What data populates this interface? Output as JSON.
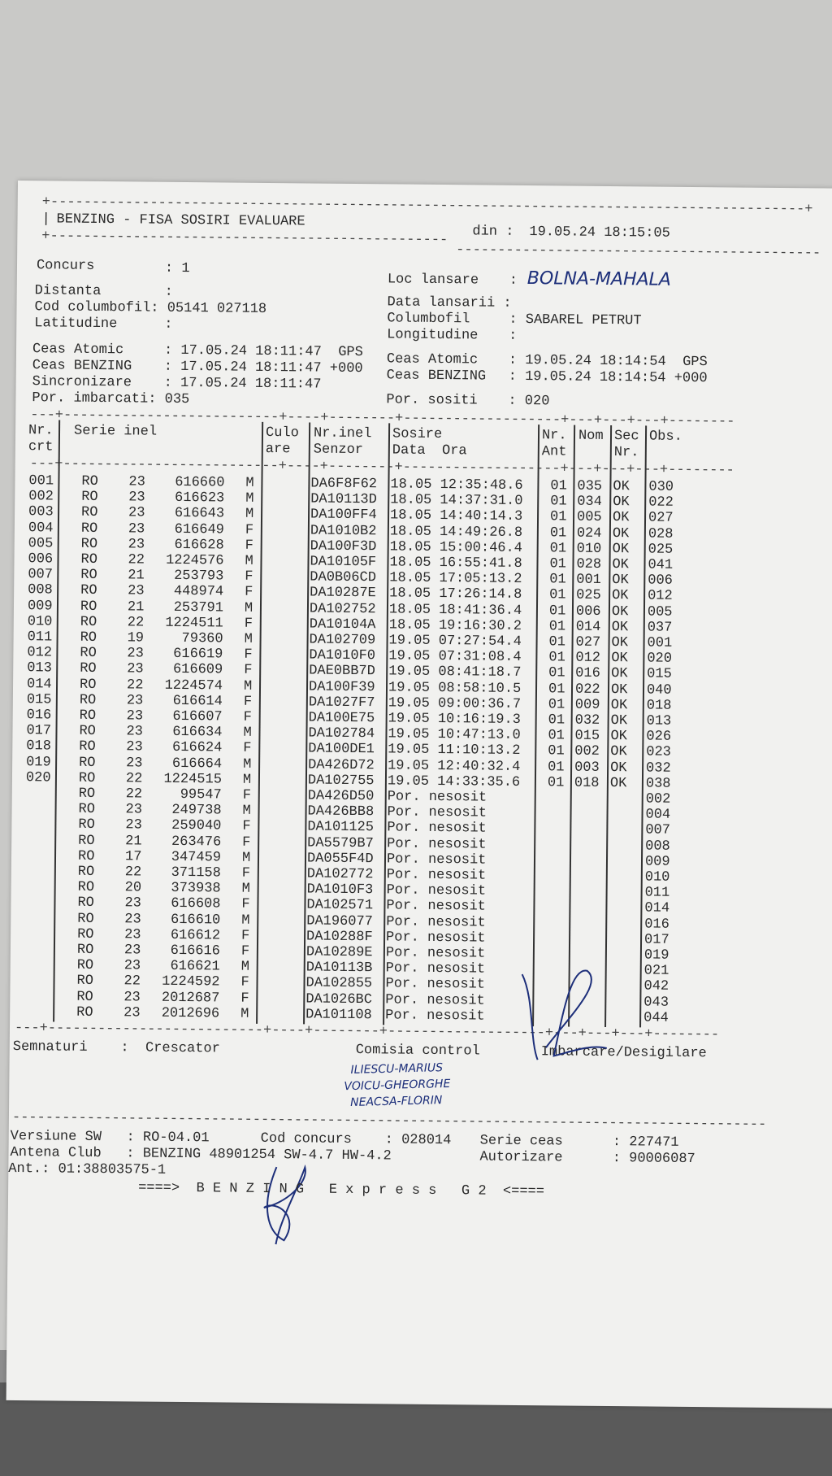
{
  "header": {
    "title": "BENZING - FISA SOSIRI EVALUARE",
    "din_label": "din :",
    "din_value": "19.05.24 18:15:05"
  },
  "info_left": {
    "concurs": {
      "label": "Concurs",
      "value": "1"
    },
    "distanta": {
      "label": "Distanta",
      "value": ""
    },
    "cod_columbofil": {
      "label": "Cod columbofil",
      "value": "05141 027118"
    },
    "latitudine": {
      "label": "Latitudine",
      "value": ""
    },
    "ceas_atomic": {
      "label": "Ceas Atomic",
      "value": "17.05.24 18:11:47",
      "suffix": "GPS"
    },
    "ceas_benzing": {
      "label": "Ceas BENZING",
      "value": "17.05.24 18:11:47",
      "suffix": "+000"
    },
    "sincronizare": {
      "label": "Sincronizare",
      "value": "17.05.24 18:11:47"
    },
    "por_imbarcati": {
      "label": "Por. imbarcati",
      "value": "035"
    }
  },
  "info_right": {
    "loc_lansare": {
      "label": "Loc lansare",
      "value_handwritten": "BOLNA-MAHALA"
    },
    "data_lansarii": {
      "label": "Data lansarii",
      "value": ""
    },
    "columbofil": {
      "label": "Columbofil",
      "value": "SABAREL PETRUT"
    },
    "longitudine": {
      "label": "Longitudine",
      "value": ""
    },
    "ceas_atomic": {
      "label": "Ceas Atomic",
      "value": "19.05.24 18:14:54",
      "suffix": "GPS"
    },
    "ceas_benzing": {
      "label": "Ceas BENZING",
      "value": "19.05.24 18:14:54",
      "suffix": "+000"
    },
    "por_sositi": {
      "label": "Por. sositi",
      "value": "020"
    }
  },
  "table": {
    "headers": {
      "nr_crt": [
        "Nr.",
        "crt"
      ],
      "serie_inel": "Serie inel",
      "culoare": [
        "Culo",
        "are"
      ],
      "nr_inel_senzor": [
        "Nr.inel",
        "Senzor"
      ],
      "sosire": [
        "Sosire",
        "Data  Ora"
      ],
      "nr_ant": [
        "Nr.",
        "Ant"
      ],
      "nom": "Nom",
      "sec_nr": [
        "Sec",
        "Nr."
      ],
      "obs": "Obs."
    },
    "rows": [
      {
        "nr": "001",
        "country": "RO",
        "year": "23",
        "ring": "616660",
        "sex": "M",
        "sensor": "DA6F8F62",
        "sosire": "18.05 12:35:48.6",
        "ant": "01",
        "nom": "035",
        "sec": "OK",
        "obs": "030"
      },
      {
        "nr": "002",
        "country": "RO",
        "year": "23",
        "ring": "616623",
        "sex": "M",
        "sensor": "DA10113D",
        "sosire": "18.05 14:37:31.0",
        "ant": "01",
        "nom": "034",
        "sec": "OK",
        "obs": "022"
      },
      {
        "nr": "003",
        "country": "RO",
        "year": "23",
        "ring": "616643",
        "sex": "M",
        "sensor": "DA100FF4",
        "sosire": "18.05 14:40:14.3",
        "ant": "01",
        "nom": "005",
        "sec": "OK",
        "obs": "027"
      },
      {
        "nr": "004",
        "country": "RO",
        "year": "23",
        "ring": "616649",
        "sex": "F",
        "sensor": "DA1010B2",
        "sosire": "18.05 14:49:26.8",
        "ant": "01",
        "nom": "024",
        "sec": "OK",
        "obs": "028"
      },
      {
        "nr": "005",
        "country": "RO",
        "year": "23",
        "ring": "616628",
        "sex": "F",
        "sensor": "DA100F3D",
        "sosire": "18.05 15:00:46.4",
        "ant": "01",
        "nom": "010",
        "sec": "OK",
        "obs": "025"
      },
      {
        "nr": "006",
        "country": "RO",
        "year": "22",
        "ring": "1224576",
        "sex": "M",
        "sensor": "DA10105F",
        "sosire": "18.05 16:55:41.8",
        "ant": "01",
        "nom": "028",
        "sec": "OK",
        "obs": "041"
      },
      {
        "nr": "007",
        "country": "RO",
        "year": "21",
        "ring": "253793",
        "sex": "F",
        "sensor": "DA0B06CD",
        "sosire": "18.05 17:05:13.2",
        "ant": "01",
        "nom": "001",
        "sec": "OK",
        "obs": "006"
      },
      {
        "nr": "008",
        "country": "RO",
        "year": "23",
        "ring": "448974",
        "sex": "F",
        "sensor": "DA10287E",
        "sosire": "18.05 17:26:14.8",
        "ant": "01",
        "nom": "025",
        "sec": "OK",
        "obs": "012"
      },
      {
        "nr": "009",
        "country": "RO",
        "year": "21",
        "ring": "253791",
        "sex": "M",
        "sensor": "DA102752",
        "sosire": "18.05 18:41:36.4",
        "ant": "01",
        "nom": "006",
        "sec": "OK",
        "obs": "005"
      },
      {
        "nr": "010",
        "country": "RO",
        "year": "22",
        "ring": "1224511",
        "sex": "F",
        "sensor": "DA10104A",
        "sosire": "18.05 19:16:30.2",
        "ant": "01",
        "nom": "014",
        "sec": "OK",
        "obs": "037"
      },
      {
        "nr": "011",
        "country": "RO",
        "year": "19",
        "ring": "79360",
        "sex": "M",
        "sensor": "DA102709",
        "sosire": "19.05 07:27:54.4",
        "ant": "01",
        "nom": "027",
        "sec": "OK",
        "obs": "001"
      },
      {
        "nr": "012",
        "country": "RO",
        "year": "23",
        "ring": "616619",
        "sex": "F",
        "sensor": "DA1010F0",
        "sosire": "19.05 07:31:08.4",
        "ant": "01",
        "nom": "012",
        "sec": "OK",
        "obs": "020"
      },
      {
        "nr": "013",
        "country": "RO",
        "year": "23",
        "ring": "616609",
        "sex": "F",
        "sensor": "DAE0BB7D",
        "sosire": "19.05 08:41:18.7",
        "ant": "01",
        "nom": "016",
        "sec": "OK",
        "obs": "015"
      },
      {
        "nr": "014",
        "country": "RO",
        "year": "22",
        "ring": "1224574",
        "sex": "M",
        "sensor": "DA100F39",
        "sosire": "19.05 08:58:10.5",
        "ant": "01",
        "nom": "022",
        "sec": "OK",
        "obs": "040"
      },
      {
        "nr": "015",
        "country": "RO",
        "year": "23",
        "ring": "616614",
        "sex": "F",
        "sensor": "DA1027F7",
        "sosire": "19.05 09:00:36.7",
        "ant": "01",
        "nom": "009",
        "sec": "OK",
        "obs": "018"
      },
      {
        "nr": "016",
        "country": "RO",
        "year": "23",
        "ring": "616607",
        "sex": "F",
        "sensor": "DA100E75",
        "sosire": "19.05 10:16:19.3",
        "ant": "01",
        "nom": "032",
        "sec": "OK",
        "obs": "013"
      },
      {
        "nr": "017",
        "country": "RO",
        "year": "23",
        "ring": "616634",
        "sex": "M",
        "sensor": "DA102784",
        "sosire": "19.05 10:47:13.0",
        "ant": "01",
        "nom": "015",
        "sec": "OK",
        "obs": "026"
      },
      {
        "nr": "018",
        "country": "RO",
        "year": "23",
        "ring": "616624",
        "sex": "F",
        "sensor": "DA100DE1",
        "sosire": "19.05 11:10:13.2",
        "ant": "01",
        "nom": "002",
        "sec": "OK",
        "obs": "023"
      },
      {
        "nr": "019",
        "country": "RO",
        "year": "23",
        "ring": "616664",
        "sex": "M",
        "sensor": "DA426D72",
        "sosire": "19.05 12:40:32.4",
        "ant": "01",
        "nom": "003",
        "sec": "OK",
        "obs": "032"
      },
      {
        "nr": "020",
        "country": "RO",
        "year": "22",
        "ring": "1224515",
        "sex": "M",
        "sensor": "DA102755",
        "sosire": "19.05 14:33:35.6",
        "ant": "01",
        "nom": "018",
        "sec": "OK",
        "obs": "038"
      },
      {
        "nr": "",
        "country": "RO",
        "year": "22",
        "ring": "99547",
        "sex": "F",
        "sensor": "DA426D50",
        "sosire": "Por. nesosit",
        "ant": "",
        "nom": "",
        "sec": "",
        "obs": "002"
      },
      {
        "nr": "",
        "country": "RO",
        "year": "23",
        "ring": "249738",
        "sex": "M",
        "sensor": "DA426BB8",
        "sosire": "Por. nesosit",
        "ant": "",
        "nom": "",
        "sec": "",
        "obs": "004"
      },
      {
        "nr": "",
        "country": "RO",
        "year": "23",
        "ring": "259040",
        "sex": "F",
        "sensor": "DA101125",
        "sosire": "Por. nesosit",
        "ant": "",
        "nom": "",
        "sec": "",
        "obs": "007"
      },
      {
        "nr": "",
        "country": "RO",
        "year": "21",
        "ring": "263476",
        "sex": "F",
        "sensor": "DA5579B7",
        "sosire": "Por. nesosit",
        "ant": "",
        "nom": "",
        "sec": "",
        "obs": "008"
      },
      {
        "nr": "",
        "country": "RO",
        "year": "17",
        "ring": "347459",
        "sex": "M",
        "sensor": "DA055F4D",
        "sosire": "Por. nesosit",
        "ant": "",
        "nom": "",
        "sec": "",
        "obs": "009"
      },
      {
        "nr": "",
        "country": "RO",
        "year": "22",
        "ring": "371158",
        "sex": "F",
        "sensor": "DA102772",
        "sosire": "Por. nesosit",
        "ant": "",
        "nom": "",
        "sec": "",
        "obs": "010"
      },
      {
        "nr": "",
        "country": "RO",
        "year": "20",
        "ring": "373938",
        "sex": "M",
        "sensor": "DA1010F3",
        "sosire": "Por. nesosit",
        "ant": "",
        "nom": "",
        "sec": "",
        "obs": "011"
      },
      {
        "nr": "",
        "country": "RO",
        "year": "23",
        "ring": "616608",
        "sex": "F",
        "sensor": "DA102571",
        "sosire": "Por. nesosit",
        "ant": "",
        "nom": "",
        "sec": "",
        "obs": "014"
      },
      {
        "nr": "",
        "country": "RO",
        "year": "23",
        "ring": "616610",
        "sex": "M",
        "sensor": "DA196077",
        "sosire": "Por. nesosit",
        "ant": "",
        "nom": "",
        "sec": "",
        "obs": "016"
      },
      {
        "nr": "",
        "country": "RO",
        "year": "23",
        "ring": "616612",
        "sex": "F",
        "sensor": "DA10288F",
        "sosire": "Por. nesosit",
        "ant": "",
        "nom": "",
        "sec": "",
        "obs": "017"
      },
      {
        "nr": "",
        "country": "RO",
        "year": "23",
        "ring": "616616",
        "sex": "F",
        "sensor": "DA10289E",
        "sosire": "Por. nesosit",
        "ant": "",
        "nom": "",
        "sec": "",
        "obs": "019"
      },
      {
        "nr": "",
        "country": "RO",
        "year": "23",
        "ring": "616621",
        "sex": "M",
        "sensor": "DA10113B",
        "sosire": "Por. nesosit",
        "ant": "",
        "nom": "",
        "sec": "",
        "obs": "021"
      },
      {
        "nr": "",
        "country": "RO",
        "year": "22",
        "ring": "1224592",
        "sex": "F",
        "sensor": "DA102855",
        "sosire": "Por. nesosit",
        "ant": "",
        "nom": "",
        "sec": "",
        "obs": "042"
      },
      {
        "nr": "",
        "country": "RO",
        "year": "23",
        "ring": "2012687",
        "sex": "F",
        "sensor": "DA1026BC",
        "sosire": "Por. nesosit",
        "ant": "",
        "nom": "",
        "sec": "",
        "obs": "043"
      },
      {
        "nr": "",
        "country": "RO",
        "year": "23",
        "ring": "2012696",
        "sex": "M",
        "sensor": "DA101108",
        "sosire": "Por. nesosit",
        "ant": "",
        "nom": "",
        "sec": "",
        "obs": "044"
      }
    ]
  },
  "signatures": {
    "label": "Semnaturi",
    "crescator": "Crescator",
    "comisia": "Comisia control",
    "imbarcare": "Imbarcare/Desigilare",
    "handwritten_names": [
      "ILIESCU-MARIUS",
      "VOICU-GHEORGHE",
      "NEACSA-FLORIN"
    ]
  },
  "footer": {
    "versiune_sw": {
      "label": "Versiune SW",
      "value": "RO-04.01"
    },
    "cod_concurs": {
      "label": "Cod concurs",
      "value": "028014"
    },
    "serie_ceas": {
      "label": "Serie ceas",
      "value": "227471"
    },
    "antena_club": {
      "label": "Antena Club",
      "value": "BENZING 48901254 SW-4.7 HW-4.2"
    },
    "autorizare": {
      "label": "Autorizare",
      "value": "90006087"
    },
    "ant": "Ant.: 01:38803575-1",
    "banner": "====>  B E N Z I N G   E x p r e s s   G 2  <===="
  },
  "colors": {
    "paper": "#f1f1ef",
    "ink": "#2a2a2a",
    "pen": "#1d2f7a",
    "background": "#c9c9c7"
  }
}
